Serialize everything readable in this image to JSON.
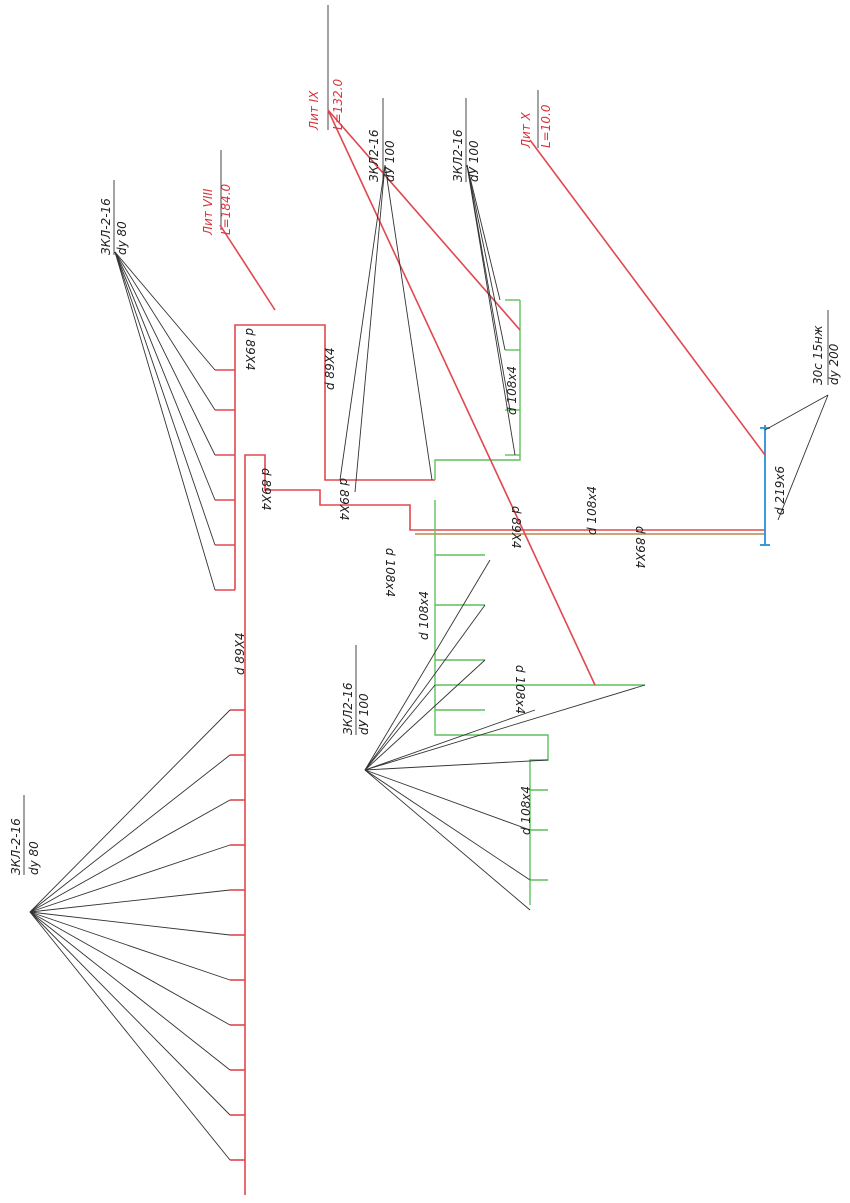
{
  "labels": {
    "valve_top_left": {
      "name": "ЗКЛ-2-16",
      "size": "dy 80"
    },
    "lit_8": {
      "name": "Лит VIII",
      "length": "L=184.0"
    },
    "lit_9": {
      "name": "Лит IX",
      "length": "L=132.0"
    },
    "valve_top_mid": {
      "name": "ЗКЛ2-16",
      "size": "dУ 100"
    },
    "valve_top_right": {
      "name": "ЗКЛ2-16",
      "size": "dУ 100"
    },
    "lit_10": {
      "name": "Лит X",
      "length": "L=10.0"
    },
    "valve_main": {
      "name": "30с 15нж",
      "size": "dy 200"
    },
    "valve_low_mid": {
      "name": "ЗКЛ2-16",
      "size": "dУ 100"
    },
    "valve_low_left": {
      "name": "ЗКЛ-2-16",
      "size": "dy 80"
    }
  },
  "pipes": [
    "d 89X4",
    "d 89X4",
    "d 89X4",
    "d 89X4",
    "d 108x4",
    "d 89X4",
    "d 108x4",
    "d 219x6",
    "d 89X4",
    "d 108x4",
    "d 108x4",
    "d 108x4",
    "d 108x4",
    "d 89X4"
  ]
}
